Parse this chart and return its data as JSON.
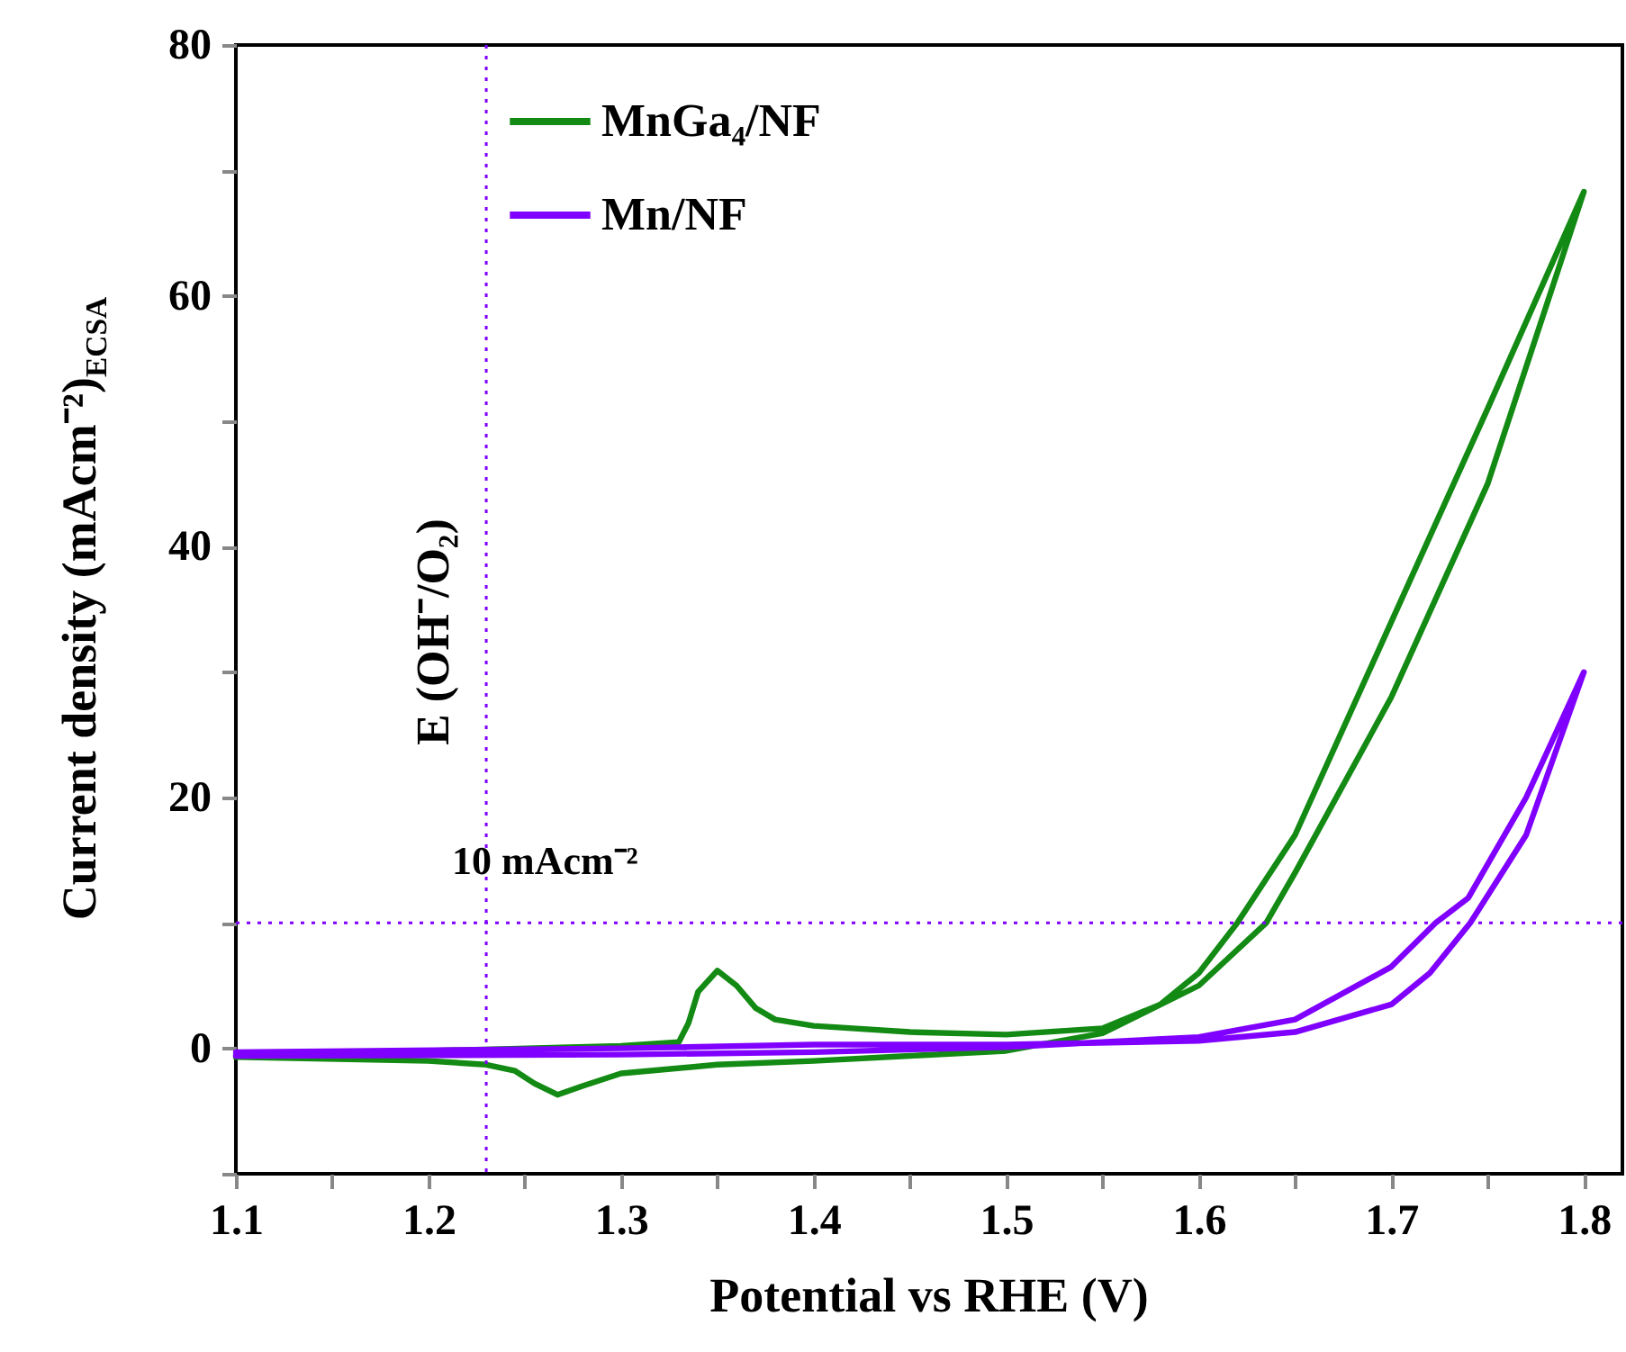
{
  "chart_data": {
    "type": "line",
    "xlabel": "Potential vs RHE (V)",
    "ylabel": "Current density (mAcm⁻²)$_{ECSA}$",
    "xlim": [
      1.1,
      1.82
    ],
    "ylim": [
      -10,
      80
    ],
    "xticks": [
      1.1,
      {
        "value": 1.15,
        "label": null
      },
      1.2,
      {
        "value": 1.25,
        "label": null
      },
      1.3,
      {
        "value": 1.35,
        "label": null
      },
      1.4,
      {
        "value": 1.45,
        "label": null
      },
      1.5,
      {
        "value": 1.55,
        "label": null
      },
      1.6,
      {
        "value": 1.65,
        "label": null
      },
      1.7,
      {
        "value": 1.75,
        "label": null
      },
      1.8
    ],
    "yticks": [
      {
        "value": -10,
        "label": null
      },
      0,
      {
        "value": 10,
        "label": null
      },
      20,
      {
        "value": 30,
        "label": null
      },
      40,
      {
        "value": 50,
        "label": null
      },
      60,
      {
        "value": 70,
        "label": null
      },
      80
    ],
    "legend": "top left",
    "grid": false,
    "marker": "none",
    "line_style": "solid",
    "series": [
      {
        "name": "MnGa₄/NF",
        "color": "#138a13",
        "x": [
          1.1,
          1.2,
          1.3,
          1.33,
          1.335,
          1.34,
          1.35,
          1.36,
          1.37,
          1.38,
          1.4,
          1.45,
          1.5,
          1.55,
          1.58,
          1.6,
          1.62,
          1.65,
          1.7,
          1.75,
          1.8,
          1.75,
          1.7,
          1.65,
          1.635,
          1.6,
          1.55,
          1.5,
          1.45,
          1.4,
          1.35,
          1.3,
          1.28,
          1.267,
          1.255,
          1.245,
          1.23,
          1.2,
          1.1
        ],
        "values": [
          -0.5,
          -0.2,
          0.2,
          0.5,
          2,
          4.5,
          6.2,
          5,
          3.2,
          2.3,
          1.8,
          1.3,
          1.1,
          1.6,
          3.5,
          6,
          10,
          17,
          34,
          51,
          68.3,
          45,
          28,
          14,
          10,
          5,
          1.2,
          -0.2,
          -0.6,
          -1,
          -1.3,
          -2,
          -3,
          -3.7,
          -2.8,
          -1.8,
          -1.3,
          -1,
          -0.7
        ]
      },
      {
        "name": "Mn/NF",
        "color": "#8000ff",
        "x": [
          1.1,
          1.3,
          1.4,
          1.5,
          1.6,
          1.65,
          1.7,
          1.72,
          1.741,
          1.77,
          1.8,
          1.77,
          1.74,
          1.723,
          1.7,
          1.65,
          1.6,
          1.5,
          1.4,
          1.3,
          1.1
        ],
        "values": [
          -0.3,
          0,
          0.3,
          0.3,
          0.6,
          1.3,
          3.5,
          6,
          10,
          17,
          30,
          20,
          12,
          10,
          6.5,
          2.3,
          0.9,
          0.1,
          -0.3,
          -0.5,
          -0.6
        ]
      }
    ],
    "ref_lines": [
      {
        "axis": "x",
        "value": 1.23,
        "label": "E (OH⁻/O₂)",
        "color": "#8000ff",
        "line_style": "dotted"
      },
      {
        "axis": "y",
        "value": 10,
        "label": "10 mAcm⁻²",
        "color": "#8000ff",
        "line_style": "dotted"
      }
    ]
  }
}
